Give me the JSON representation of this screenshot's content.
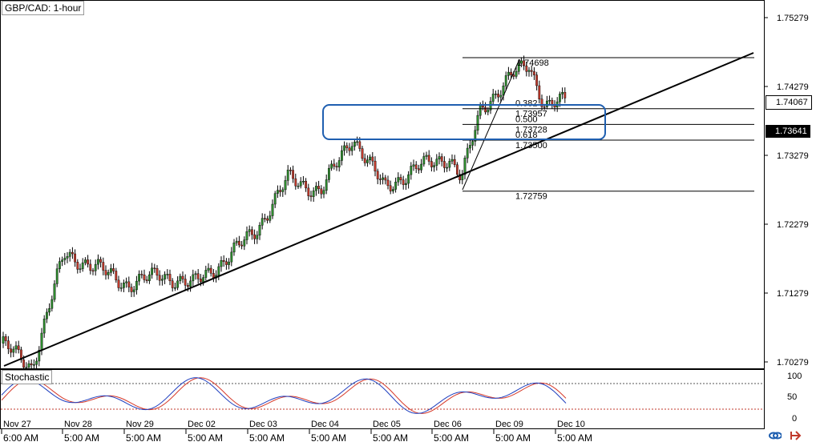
{
  "title": "GBP/CAD: 1-hour",
  "indicator": {
    "name": "Stochastic",
    "levels": [
      "100",
      "50",
      "0"
    ]
  },
  "price_axis": {
    "labels": [
      "1.75279",
      "1.74279",
      "1.73279",
      "1.72279",
      "1.71279",
      "1.70279"
    ],
    "current_price": "1.74067",
    "marked_price": "1.73641"
  },
  "fibonacci": {
    "high": "1.74698",
    "levels": [
      {
        "ratio": "0.382",
        "price": "1.73957"
      },
      {
        "ratio": "0.500",
        "price": "1.73728"
      },
      {
        "ratio": "0.618",
        "price": "1.73500"
      }
    ],
    "low": "1.72759"
  },
  "time_axis": {
    "dates": [
      "Nov 27",
      "Nov 28",
      "Nov 29",
      "Dec 02",
      "Dec 03",
      "Dec 04",
      "Dec 05",
      "Dec 06",
      "Dec 09",
      "Dec 10"
    ],
    "times": [
      "6:00 AM",
      "5:00 AM",
      "5:00 AM",
      "5:00 AM",
      "5:00 AM",
      "5:00 AM",
      "5:00 AM",
      "5:00 AM",
      "5:00 AM",
      "5:00 AM"
    ]
  },
  "colors": {
    "bull": "#2e8b2e",
    "bear": "#c0392b",
    "box": "#1f5fb0",
    "stoch_main": "#1f3fbf",
    "stoch_signal": "#d63a2a"
  },
  "icons": [
    "link-icon",
    "arrow-icon"
  ],
  "chart_data": {
    "type": "candlestick",
    "title": "GBP/CAD: 1-hour",
    "x": [
      "Nov 27",
      "Nov 28",
      "Nov 29",
      "Dec 02",
      "Dec 03",
      "Dec 04",
      "Dec 05",
      "Dec 06",
      "Dec 09",
      "Dec 10"
    ],
    "series": [
      {
        "values": [
          1.7045,
          1.719,
          1.7145,
          1.716,
          1.727,
          1.7275,
          1.7285,
          1.7315,
          1.742,
          1.7407
        ]
      }
    ],
    "ylim": [
      1.6985,
      1.7555
    ],
    "annotations": [
      "1.74698",
      "0.382",
      "1.73957",
      "0.500",
      "1.73728",
      "0.618",
      "1.73500",
      "1.72759"
    ]
  }
}
